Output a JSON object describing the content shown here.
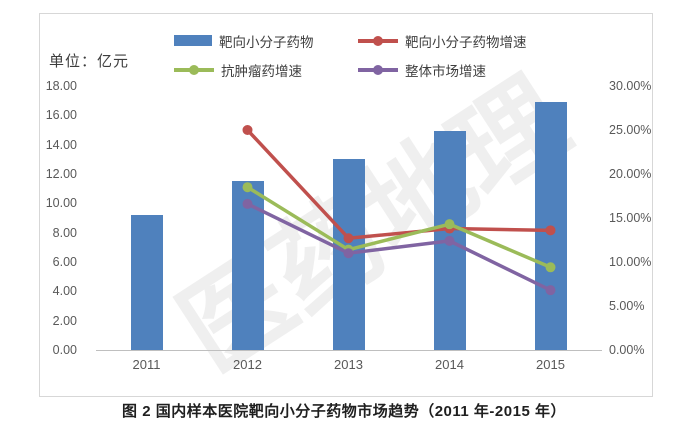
{
  "figure": {
    "unit_label": "单位：亿元",
    "caption": "图 2 国内样本医院靶向小分子药物市场趋势（2011 年-2015 年）",
    "watermark": "医药地理"
  },
  "colors": {
    "bar_blue": "#4F81BD",
    "line_red": "#C0504D",
    "line_green": "#9BBB59",
    "line_purple": "#8064A2",
    "axis_text": "#595959",
    "border": "#d7d7d7"
  },
  "legend": [
    {
      "label": "靶向小分子药物",
      "type": "bar",
      "color": "#4F81BD"
    },
    {
      "label": "靶向小分子药物增速",
      "type": "line",
      "color": "#C0504D"
    },
    {
      "label": "抗肿瘤药增速",
      "type": "line",
      "color": "#9BBB59"
    },
    {
      "label": "整体市场增速",
      "type": "line",
      "color": "#8064A2"
    }
  ],
  "chart_data": {
    "type": "bar",
    "subtype": "bar-and-line-combo",
    "title": "图 2 国内样本医院靶向小分子药物市场趋势（2011 年-2015 年）",
    "categories": [
      "2011",
      "2012",
      "2013",
      "2014",
      "2015"
    ],
    "bar_series": {
      "id": "target_drug_sales",
      "name": "靶向小分子药物",
      "axis": "left",
      "unit": "亿元",
      "color": "#4F81BD",
      "values": [
        9.2,
        11.5,
        13.0,
        14.9,
        16.9
      ]
    },
    "line_series": [
      {
        "id": "target_drug_growth",
        "name": "靶向小分子药物增速",
        "axis": "right",
        "unit": "%",
        "color": "#C0504D",
        "values": [
          null,
          25.0,
          12.7,
          13.8,
          13.6
        ]
      },
      {
        "id": "antitumor_growth",
        "name": "抗肿瘤药增速",
        "axis": "right",
        "unit": "%",
        "color": "#9BBB59",
        "values": [
          null,
          18.5,
          11.4,
          14.3,
          9.4
        ]
      },
      {
        "id": "overall_market_growth",
        "name": "整体市场增速",
        "axis": "right",
        "unit": "%",
        "color": "#8064A2",
        "values": [
          null,
          16.6,
          11.0,
          12.4,
          6.8
        ]
      }
    ],
    "left_axis": {
      "label": "单位：亿元",
      "min": 0,
      "max": 18,
      "step": 2,
      "ticks": [
        "18.00",
        "16.00",
        "14.00",
        "12.00",
        "10.00",
        "8.00",
        "6.00",
        "4.00",
        "2.00",
        "0.00"
      ]
    },
    "right_axis": {
      "min": 0,
      "max": 30,
      "step": 5,
      "ticks": [
        "30.00%",
        "25.00%",
        "20.00%",
        "15.00%",
        "10.00%",
        "5.00%",
        "0.00%"
      ]
    },
    "grid": false,
    "legend_position": "top"
  }
}
